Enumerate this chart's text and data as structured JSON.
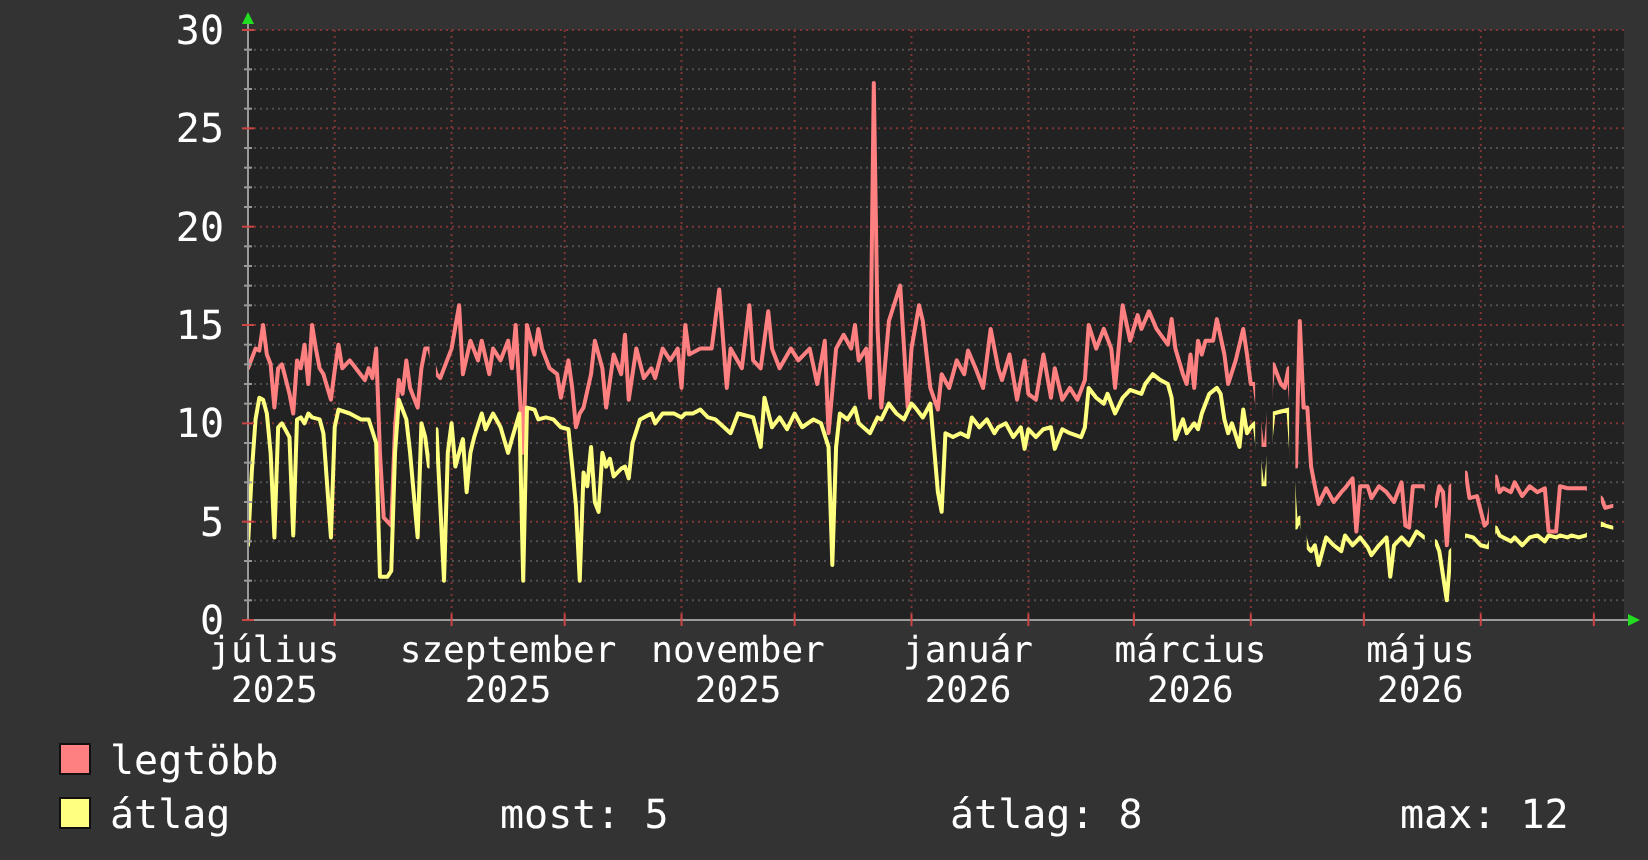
{
  "chart_data": {
    "type": "line",
    "xlim": [
      "2025-07-09",
      "2026-07-09"
    ],
    "ylim": [
      0,
      30
    ],
    "xticks": [
      {
        "value": "2025-07-16",
        "label": "július 2025"
      },
      {
        "value": "2025-08-01",
        "label": null
      },
      {
        "value": "2025-09-01",
        "label": null
      },
      {
        "value": "2025-09-16",
        "label": "szeptember 2025"
      },
      {
        "value": "2025-10-01",
        "label": null
      },
      {
        "value": "2025-11-01",
        "label": null
      },
      {
        "value": "2025-11-16",
        "label": "november 2025"
      },
      {
        "value": "2025-12-01",
        "label": null
      },
      {
        "value": "2026-01-01",
        "label": null
      },
      {
        "value": "2026-01-16",
        "label": "január 2026"
      },
      {
        "value": "2026-02-01",
        "label": null
      },
      {
        "value": "2026-03-01",
        "label": null
      },
      {
        "value": "2026-03-16",
        "label": "március 2026"
      },
      {
        "value": "2026-04-01",
        "label": null
      },
      {
        "value": "2026-05-01",
        "label": null
      },
      {
        "value": "2026-05-16",
        "label": "május 2026"
      },
      {
        "value": "2026-06-01",
        "label": null
      },
      {
        "value": "2026-07-01",
        "label": null
      }
    ],
    "yticks": [
      0,
      {
        "value": 1,
        "label": null
      },
      {
        "value": 2,
        "label": null
      },
      {
        "value": 3,
        "label": null
      },
      {
        "value": 4,
        "label": null
      },
      5,
      {
        "value": 6,
        "label": null
      },
      {
        "value": 7,
        "label": null
      },
      {
        "value": 8,
        "label": null
      },
      {
        "value": 9,
        "label": null
      },
      10,
      {
        "value": 11,
        "label": null
      },
      {
        "value": 12,
        "label": null
      },
      {
        "value": 13,
        "label": null
      },
      {
        "value": 14,
        "label": null
      },
      15,
      {
        "value": 16,
        "label": null
      },
      {
        "value": 17,
        "label": null
      },
      {
        "value": 18,
        "label": null
      },
      {
        "value": 19,
        "label": null
      },
      20,
      {
        "value": 21,
        "label": null
      },
      {
        "value": 22,
        "label": null
      },
      {
        "value": 23,
        "label": null
      },
      {
        "value": 24,
        "label": null
      },
      25,
      {
        "value": 26,
        "label": null
      },
      {
        "value": 27,
        "label": null
      },
      {
        "value": 28,
        "label": null
      },
      {
        "value": 29,
        "label": null
      },
      30
    ],
    "grid": true,
    "legend": "bottom left",
    "annotations": [
      "most: 5",
      "átlag: 8",
      "max: 12"
    ],
    "series": [
      {
        "name": "legtöbb",
        "color": "#ff8080",
        "x": [
          "2025-07-09",
          "2025-07-11",
          "2025-07-12",
          "2025-07-13",
          "2025-07-14",
          "2025-07-15",
          "2025-07-16",
          "2025-07-17",
          "2025-07-18",
          "2025-07-20",
          "2025-07-21",
          "2025-07-22",
          "2025-07-23",
          "2025-07-24",
          "2025-07-25",
          "2025-07-26",
          "2025-07-27",
          "2025-07-28",
          "2025-07-29",
          "2025-07-31",
          "2025-08-01",
          "2025-08-02",
          "2025-08-03",
          "2025-08-05",
          "2025-08-07",
          "2025-08-09",
          "2025-08-10",
          "2025-08-11",
          "2025-08-12",
          "2025-08-13",
          "2025-08-14",
          "2025-08-16",
          "2025-08-17",
          "2025-08-18",
          "2025-08-19",
          "2025-08-20",
          "2025-08-21",
          "2025-08-23",
          "2025-08-24",
          "2025-08-25",
          "2025-08-26",
          "2025-08-27",
          "2025-08-28",
          "2025-08-29",
          "2025-09-01",
          "2025-09-03",
          "2025-09-04",
          "2025-09-06",
          "2025-09-08",
          "2025-09-09",
          "2025-09-11",
          "2025-09-12",
          "2025-09-14",
          "2025-09-16",
          "2025-09-17",
          "2025-09-18",
          "2025-09-20",
          "2025-09-21",
          "2025-09-23",
          "2025-09-24",
          "2025-09-25",
          "2025-09-27",
          "2025-09-29",
          "2025-09-30",
          "2025-10-02",
          "2025-10-03",
          "2025-10-04",
          "2025-10-05",
          "2025-10-06",
          "2025-10-08",
          "2025-10-09",
          "2025-10-11",
          "2025-10-12",
          "2025-10-14",
          "2025-10-16",
          "2025-10-17",
          "2025-10-18",
          "2025-10-20",
          "2025-10-22",
          "2025-10-24",
          "2025-10-25",
          "2025-10-27",
          "2025-10-29",
          "2025-10-31",
          "2025-11-01",
          "2025-11-02",
          "2025-11-03",
          "2025-11-06",
          "2025-11-09",
          "2025-11-11",
          "2025-11-13",
          "2025-11-14",
          "2025-11-17",
          "2025-11-19",
          "2025-11-20",
          "2025-11-22",
          "2025-11-24",
          "2025-11-25",
          "2025-11-27",
          "2025-11-30",
          "2025-12-02",
          "2025-12-05",
          "2025-12-07",
          "2025-12-09",
          "2025-12-10",
          "2025-12-12",
          "2025-12-14",
          "2025-12-16",
          "2025-12-17",
          "2025-12-18",
          "2025-12-20",
          "2025-12-21",
          "2025-12-22",
          "2025-12-23",
          "2025-12-24",
          "2025-12-26",
          "2025-12-27",
          "2025-12-29",
          "2025-12-31",
          "2026-01-01",
          "2026-01-03",
          "2026-01-04",
          "2026-01-06",
          "2026-01-08",
          "2026-01-09",
          "2026-01-11",
          "2026-01-13",
          "2026-01-15",
          "2026-01-16",
          "2026-01-18",
          "2026-01-20",
          "2026-01-22",
          "2026-01-24",
          "2026-01-25",
          "2026-01-27",
          "2026-01-29",
          "2026-01-31",
          "2026-02-01",
          "2026-02-03",
          "2026-02-05",
          "2026-02-07",
          "2026-02-08",
          "2026-02-10",
          "2026-02-12",
          "2026-02-14",
          "2026-02-16",
          "2026-02-17",
          "2026-02-19",
          "2026-02-21",
          "2026-02-23",
          "2026-02-24",
          "2026-02-26",
          "2026-02-28",
          "2026-03-02",
          "2026-03-03",
          "2026-03-05",
          "2026-03-07",
          "2026-03-10",
          "2026-03-11",
          "2026-03-12",
          "2026-03-14",
          "2026-03-15",
          "2026-03-16",
          "2026-03-17",
          "2026-03-18",
          "2026-03-19",
          "2026-03-20",
          "2026-03-22",
          "2026-03-23",
          "2026-03-25",
          "2026-03-26",
          "2026-03-28",
          "2026-03-30",
          "2026-03-31",
          "2026-04-01",
          "2026-04-02",
          "2026-04-03",
          "2026-04-04",
          "2026-04-05",
          "2026-04-06",
          "2026-04-07",
          "2026-04-08",
          "2026-04-09",
          "2026-04-10",
          "2026-04-11",
          "2026-04-12",
          "2026-04-13",
          "2026-04-14",
          "2026-04-15",
          "2026-04-16",
          "2026-04-17",
          "2026-04-18",
          "2026-04-19",
          "2026-04-21",
          "2026-04-23",
          "2026-04-25",
          "2026-04-26",
          "2026-04-28",
          "2026-04-29",
          "2026-04-30",
          "2026-05-02",
          "2026-05-03",
          "2026-05-05",
          "2026-05-07",
          "2026-05-09",
          "2026-05-11",
          "2026-05-12",
          "2026-05-13",
          "2026-05-14",
          "2026-05-16",
          "2026-05-17",
          "2026-05-18",
          "2026-05-20",
          "2026-05-21",
          "2026-05-22",
          "2026-05-23",
          "2026-05-24",
          "2026-05-25",
          "2026-05-28",
          "2026-05-29",
          "2026-05-31",
          "2026-06-02",
          "2026-06-03",
          "2026-06-04",
          "2026-06-05",
          "2026-06-06",
          "2026-06-07",
          "2026-06-09",
          "2026-06-10",
          "2026-06-12",
          "2026-06-14",
          "2026-06-16",
          "2026-06-18",
          "2026-06-19",
          "2026-06-21",
          "2026-06-22",
          "2026-06-24",
          "2026-06-25",
          "2026-06-27",
          "2026-06-29",
          "2026-06-30",
          "2026-07-03",
          "2026-07-04",
          "2026-07-06"
        ],
        "values": [
          12.8,
          13.8,
          13.7,
          15.0,
          13.5,
          13.0,
          10.8,
          12.8,
          13.0,
          11.5,
          10.5,
          13.2,
          12.8,
          14.0,
          12.0,
          15.0,
          13.8,
          12.8,
          12.5,
          11.2,
          12.7,
          14.0,
          12.8,
          13.2,
          12.7,
          12.2,
          12.8,
          12.3,
          13.8,
          8.5,
          5.2,
          4.8,
          9.8,
          12.2,
          11.5,
          13.2,
          11.8,
          10.8,
          12.8,
          13.8,
          13.8,
          null,
          12.5,
          12.3,
          13.8,
          16.0,
          12.5,
          14.2,
          13.2,
          14.2,
          12.5,
          13.8,
          13.2,
          14.2,
          12.8,
          15.0,
          8.5,
          15.0,
          13.5,
          14.8,
          13.8,
          12.8,
          12.5,
          11.3,
          13.2,
          11.8,
          9.8,
          10.5,
          10.8,
          12.5,
          14.2,
          12.8,
          10.8,
          13.5,
          12.5,
          14.5,
          11.2,
          13.8,
          12.3,
          12.8,
          12.3,
          13.8,
          13.2,
          13.8,
          11.8,
          15.0,
          13.5,
          13.8,
          13.8,
          16.8,
          11.8,
          13.8,
          12.8,
          16.0,
          13.2,
          12.8,
          15.7,
          13.8,
          12.8,
          13.8,
          13.2,
          13.8,
          12.0,
          14.2,
          9.5,
          13.8,
          14.5,
          13.8,
          15.0,
          13.2,
          13.8,
          11.3,
          27.3,
          14.8,
          10.8,
          15.2,
          15.8,
          17.0,
          10.8,
          13.8,
          16.0,
          15.2,
          11.8,
          10.7,
          12.5,
          11.8,
          13.2,
          12.5,
          13.7,
          12.8,
          11.8,
          14.8,
          12.8,
          12.2,
          13.5,
          11.2,
          13.2,
          11.5,
          11.2,
          13.5,
          11.3,
          12.8,
          11.2,
          11.8,
          11.2,
          12.2,
          15.0,
          13.8,
          14.8,
          13.8,
          11.8,
          16.0,
          14.2,
          15.5,
          14.8,
          15.7,
          14.8,
          14.0,
          15.3,
          13.8,
          12.5,
          12.0,
          13.5,
          11.8,
          14.2,
          13.5,
          14.2,
          14.2,
          15.3,
          13.5,
          12.0,
          13.2,
          14.8,
          13.5,
          12.0,
          12.0,
          null,
          8.9,
          8.9,
          null,
          13.0,
          12.5,
          12.0,
          11.8,
          12.8,
          null,
          7.8,
          15.2,
          10.8,
          10.8,
          7.8,
          6.8,
          5.9,
          6.7,
          6.0,
          6.5,
          6.7,
          7.2,
          4.5,
          6.8,
          6.8,
          6.2,
          6.8,
          6.5,
          6.0,
          7.0,
          4.8,
          4.7,
          6.8,
          6.8,
          6.8,
          null,
          5.8,
          6.8,
          6.5,
          3.8,
          6.8,
          null,
          7.5,
          6.2,
          6.3,
          4.8,
          5.0,
          null,
          7.3,
          6.5,
          6.7,
          6.5,
          7.0,
          6.3,
          6.8,
          6.5,
          6.7,
          4.5,
          4.5,
          6.8,
          6.7,
          6.7,
          6.7,
          6.7,
          null,
          6.2,
          5.7,
          5.8
        ]
      },
      {
        "name": "átlag",
        "color": "#ffff80",
        "x": [
          "2025-07-09",
          "2025-07-10",
          "2025-07-11",
          "2025-07-12",
          "2025-07-13",
          "2025-07-14",
          "2025-07-15",
          "2025-07-16",
          "2025-07-17",
          "2025-07-18",
          "2025-07-20",
          "2025-07-21",
          "2025-07-22",
          "2025-07-23",
          "2025-07-24",
          "2025-07-25",
          "2025-07-26",
          "2025-07-28",
          "2025-07-29",
          "2025-07-31",
          "2025-08-01",
          "2025-08-02",
          "2025-08-05",
          "2025-08-08",
          "2025-08-10",
          "2025-08-12",
          "2025-08-13",
          "2025-08-15",
          "2025-08-16",
          "2025-08-17",
          "2025-08-18",
          "2025-08-20",
          "2025-08-21",
          "2025-08-23",
          "2025-08-24",
          "2025-08-25",
          "2025-08-26",
          "2025-08-27",
          "2025-08-28",
          "2025-08-30",
          "2025-08-31",
          "2025-09-01",
          "2025-09-02",
          "2025-09-04",
          "2025-09-05",
          "2025-09-06",
          "2025-09-07",
          "2025-09-09",
          "2025-09-10",
          "2025-09-12",
          "2025-09-14",
          "2025-09-16",
          "2025-09-17",
          "2025-09-19",
          "2025-09-20",
          "2025-09-21",
          "2025-09-23",
          "2025-09-24",
          "2025-09-26",
          "2025-09-28",
          "2025-09-30",
          "2025-10-02",
          "2025-10-03",
          "2025-10-04",
          "2025-10-05",
          "2025-10-06",
          "2025-10-07",
          "2025-10-08",
          "2025-10-09",
          "2025-10-10",
          "2025-10-11",
          "2025-10-12",
          "2025-10-13",
          "2025-10-14",
          "2025-10-16",
          "2025-10-17",
          "2025-10-18",
          "2025-10-19",
          "2025-10-21",
          "2025-10-24",
          "2025-10-25",
          "2025-10-27",
          "2025-10-30",
          "2025-11-01",
          "2025-11-02",
          "2025-11-04",
          "2025-11-06",
          "2025-11-08",
          "2025-11-10",
          "2025-11-14",
          "2025-11-16",
          "2025-11-20",
          "2025-11-22",
          "2025-11-23",
          "2025-11-25",
          "2025-11-27",
          "2025-11-29",
          "2025-12-01",
          "2025-12-03",
          "2025-12-06",
          "2025-12-08",
          "2025-12-10",
          "2025-12-11",
          "2025-12-12",
          "2025-12-13",
          "2025-12-15",
          "2025-12-17",
          "2025-12-18",
          "2025-12-21",
          "2025-12-23",
          "2025-12-24",
          "2025-12-26",
          "2025-12-28",
          "2025-12-30",
          "2026-01-01",
          "2026-01-02",
          "2026-01-04",
          "2026-01-06",
          "2026-01-08",
          "2026-01-09",
          "2026-01-10",
          "2026-01-12",
          "2026-01-14",
          "2026-01-16",
          "2026-01-17",
          "2026-01-19",
          "2026-01-21",
          "2026-01-23",
          "2026-01-24",
          "2026-01-26",
          "2026-01-28",
          "2026-01-30",
          "2026-01-31",
          "2026-02-01",
          "2026-02-03",
          "2026-02-05",
          "2026-02-07",
          "2026-02-08",
          "2026-02-10",
          "2026-02-12",
          "2026-02-15",
          "2026-02-16",
          "2026-02-17",
          "2026-02-19",
          "2026-02-21",
          "2026-02-22",
          "2026-02-24",
          "2026-02-26",
          "2026-02-28",
          "2026-03-03",
          "2026-03-04",
          "2026-03-06",
          "2026-03-08",
          "2026-03-10",
          "2026-03-11",
          "2026-03-12",
          "2026-03-14",
          "2026-03-15",
          "2026-03-17",
          "2026-03-18",
          "2026-03-19",
          "2026-03-21",
          "2026-03-23",
          "2026-03-24",
          "2026-03-25",
          "2026-03-26",
          "2026-03-27",
          "2026-03-29",
          "2026-03-30",
          "2026-03-31",
          "2026-04-01",
          "2026-04-02",
          "2026-04-03",
          "2026-04-04",
          "2026-04-05",
          "2026-04-06",
          "2026-04-07",
          "2026-04-09",
          "2026-04-11",
          "2026-04-12",
          "2026-04-13",
          "2026-04-14",
          "2026-04-15",
          "2026-04-16",
          "2026-04-17",
          "2026-04-18",
          "2026-04-19",
          "2026-04-21",
          "2026-04-23",
          "2026-04-25",
          "2026-04-26",
          "2026-04-28",
          "2026-04-30",
          "2026-05-02",
          "2026-05-03",
          "2026-05-05",
          "2026-05-07",
          "2026-05-08",
          "2026-05-09",
          "2026-05-11",
          "2026-05-13",
          "2026-05-15",
          "2026-05-17",
          "2026-05-18",
          "2026-05-20",
          "2026-05-21",
          "2026-05-23",
          "2026-05-24",
          "2026-05-25",
          "2026-05-28",
          "2026-05-30",
          "2026-06-01",
          "2026-06-03",
          "2026-06-04",
          "2026-06-05",
          "2026-06-06",
          "2026-06-07",
          "2026-06-09",
          "2026-06-10",
          "2026-06-12",
          "2026-06-14",
          "2026-06-16",
          "2026-06-18",
          "2026-06-19",
          "2026-06-21",
          "2026-06-22",
          "2026-06-24",
          "2026-06-25",
          "2026-06-27",
          "2026-06-29",
          "2026-06-30",
          "2026-07-03",
          "2026-07-04",
          "2026-07-06"
        ],
        "values": [
          3.8,
          7.5,
          10.2,
          11.3,
          11.2,
          10.5,
          8.5,
          4.2,
          9.8,
          10.0,
          9.3,
          4.3,
          10.2,
          10.3,
          10.0,
          10.5,
          10.3,
          10.2,
          9.5,
          4.2,
          9.8,
          10.7,
          10.5,
          10.2,
          10.2,
          9.0,
          2.2,
          2.2,
          2.5,
          8.5,
          11.2,
          10.2,
          8.5,
          4.2,
          10.0,
          9.3,
          7.8,
          null,
          9.7,
          2.0,
          8.5,
          10.0,
          7.8,
          9.2,
          6.5,
          8.5,
          9.3,
          10.5,
          9.7,
          10.5,
          9.8,
          8.5,
          9.2,
          10.5,
          2.0,
          10.8,
          10.7,
          10.2,
          10.3,
          10.2,
          9.8,
          9.7,
          7.8,
          5.8,
          2.0,
          7.5,
          6.8,
          8.8,
          6.0,
          5.5,
          8.5,
          7.8,
          8.2,
          7.3,
          7.7,
          7.8,
          7.2,
          9.0,
          10.2,
          10.5,
          10.0,
          10.5,
          10.5,
          10.3,
          10.5,
          10.5,
          10.7,
          10.3,
          10.2,
          9.5,
          10.5,
          10.3,
          8.8,
          11.3,
          9.8,
          10.3,
          9.7,
          10.5,
          9.8,
          10.2,
          10.0,
          8.8,
          2.8,
          8.8,
          10.5,
          10.2,
          10.8,
          10.0,
          9.5,
          10.3,
          10.2,
          11.0,
          10.5,
          10.2,
          11.0,
          10.8,
          10.3,
          11.0,
          6.5,
          5.5,
          9.5,
          9.3,
          9.5,
          9.3,
          10.3,
          9.8,
          10.2,
          9.5,
          9.8,
          10.0,
          9.3,
          9.8,
          8.7,
          9.7,
          9.3,
          9.7,
          9.8,
          8.7,
          9.7,
          9.5,
          9.3,
          9.8,
          11.8,
          11.3,
          11.0,
          11.5,
          10.5,
          11.3,
          11.7,
          11.5,
          12.0,
          12.5,
          12.2,
          12.0,
          11.3,
          9.2,
          10.2,
          9.5,
          10.0,
          9.7,
          10.5,
          11.5,
          11.8,
          11.5,
          10.2,
          9.5,
          10.0,
          8.8,
          10.7,
          9.5,
          9.8,
          10.0,
          null,
          6.9,
          6.9,
          null,
          10.5,
          10.6,
          10.7,
          null,
          4.7,
          5.2,
          null,
          3.7,
          3.5,
          3.8,
          2.8,
          4.2,
          3.8,
          3.5,
          4.3,
          3.8,
          4.2,
          3.7,
          3.3,
          3.8,
          4.2,
          2.2,
          3.8,
          4.2,
          3.8,
          4.5,
          4.2,
          null,
          4.0,
          3.5,
          1.0,
          3.5,
          null,
          4.3,
          4.2,
          3.8,
          3.7,
          null,
          4.7,
          4.3,
          4.2,
          4.0,
          4.2,
          3.8,
          4.2,
          4.3,
          4.0,
          4.3,
          4.2,
          4.3,
          4.2,
          4.3,
          4.2,
          4.3,
          null,
          4.9,
          4.8,
          4.7
        ]
      }
    ]
  }
}
